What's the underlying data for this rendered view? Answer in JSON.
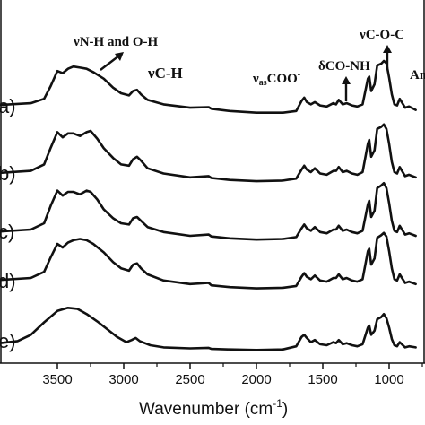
{
  "chart_data": {
    "type": "line",
    "title": "",
    "xlabel_main": "Wavenumber (cm",
    "xlabel_sup": "-1",
    "xlabel_close": ")",
    "ylabel": "",
    "xlim": [
      4000,
      800
    ],
    "x_ticks": [
      3500,
      3000,
      2500,
      2000,
      1500,
      1000
    ],
    "x_tick_labels": [
      "3500",
      "3000",
      "2500",
      "2000",
      "1500",
      "1000"
    ],
    "grid": false,
    "series": [
      {
        "name": "a)",
        "points": [
          [
            4000,
            0.2
          ],
          [
            3700,
            0.24
          ],
          [
            3600,
            0.32
          ],
          [
            3550,
            0.55
          ],
          [
            3500,
            0.82
          ],
          [
            3460,
            0.78
          ],
          [
            3420,
            0.86
          ],
          [
            3380,
            0.9
          ],
          [
            3330,
            0.88
          ],
          [
            3280,
            0.86
          ],
          [
            3230,
            0.8
          ],
          [
            3150,
            0.68
          ],
          [
            3080,
            0.52
          ],
          [
            3020,
            0.42
          ],
          [
            2960,
            0.38
          ],
          [
            2930,
            0.46
          ],
          [
            2900,
            0.48
          ],
          [
            2870,
            0.4
          ],
          [
            2820,
            0.3
          ],
          [
            2700,
            0.22
          ],
          [
            2500,
            0.16
          ],
          [
            2360,
            0.17
          ],
          [
            2340,
            0.14
          ],
          [
            2200,
            0.1
          ],
          [
            2000,
            0.07
          ],
          [
            1800,
            0.07
          ],
          [
            1700,
            0.1
          ],
          [
            1660,
            0.28
          ],
          [
            1640,
            0.34
          ],
          [
            1620,
            0.26
          ],
          [
            1590,
            0.22
          ],
          [
            1560,
            0.26
          ],
          [
            1520,
            0.2
          ],
          [
            1470,
            0.18
          ],
          [
            1420,
            0.24
          ],
          [
            1400,
            0.22
          ],
          [
            1380,
            0.3
          ],
          [
            1350,
            0.22
          ],
          [
            1320,
            0.24
          ],
          [
            1280,
            0.2
          ],
          [
            1240,
            0.18
          ],
          [
            1200,
            0.22
          ],
          [
            1160,
            0.68
          ],
          [
            1150,
            0.72
          ],
          [
            1135,
            0.46
          ],
          [
            1110,
            0.58
          ],
          [
            1090,
            0.92
          ],
          [
            1060,
            0.95
          ],
          [
            1040,
            1.0
          ],
          [
            1020,
            0.96
          ],
          [
            1000,
            0.7
          ],
          [
            980,
            0.4
          ],
          [
            960,
            0.22
          ],
          [
            940,
            0.2
          ],
          [
            920,
            0.32
          ],
          [
            880,
            0.16
          ],
          [
            850,
            0.18
          ],
          [
            800,
            0.12
          ]
        ]
      },
      {
        "name": "b)",
        "points": [
          [
            4000,
            0.16
          ],
          [
            3700,
            0.2
          ],
          [
            3600,
            0.3
          ],
          [
            3550,
            0.56
          ],
          [
            3500,
            0.8
          ],
          [
            3460,
            0.72
          ],
          [
            3420,
            0.78
          ],
          [
            3380,
            0.78
          ],
          [
            3330,
            0.74
          ],
          [
            3280,
            0.8
          ],
          [
            3250,
            0.82
          ],
          [
            3200,
            0.7
          ],
          [
            3150,
            0.55
          ],
          [
            3080,
            0.4
          ],
          [
            3020,
            0.3
          ],
          [
            2960,
            0.28
          ],
          [
            2930,
            0.38
          ],
          [
            2900,
            0.42
          ],
          [
            2870,
            0.36
          ],
          [
            2820,
            0.24
          ],
          [
            2700,
            0.16
          ],
          [
            2500,
            0.1
          ],
          [
            2360,
            0.12
          ],
          [
            2340,
            0.09
          ],
          [
            2200,
            0.06
          ],
          [
            2000,
            0.04
          ],
          [
            1800,
            0.05
          ],
          [
            1700,
            0.08
          ],
          [
            1660,
            0.22
          ],
          [
            1640,
            0.28
          ],
          [
            1620,
            0.22
          ],
          [
            1590,
            0.18
          ],
          [
            1560,
            0.24
          ],
          [
            1520,
            0.16
          ],
          [
            1470,
            0.14
          ],
          [
            1420,
            0.2
          ],
          [
            1400,
            0.2
          ],
          [
            1380,
            0.26
          ],
          [
            1350,
            0.18
          ],
          [
            1320,
            0.2
          ],
          [
            1280,
            0.16
          ],
          [
            1240,
            0.14
          ],
          [
            1200,
            0.18
          ],
          [
            1160,
            0.62
          ],
          [
            1150,
            0.68
          ],
          [
            1135,
            0.42
          ],
          [
            1110,
            0.52
          ],
          [
            1090,
            0.85
          ],
          [
            1060,
            0.88
          ],
          [
            1040,
            0.92
          ],
          [
            1020,
            0.85
          ],
          [
            1000,
            0.62
          ],
          [
            980,
            0.34
          ],
          [
            960,
            0.18
          ],
          [
            940,
            0.16
          ],
          [
            920,
            0.26
          ],
          [
            880,
            0.12
          ],
          [
            850,
            0.14
          ],
          [
            800,
            0.1
          ]
        ]
      },
      {
        "name": "c)",
        "points": [
          [
            4000,
            0.16
          ],
          [
            3700,
            0.2
          ],
          [
            3600,
            0.3
          ],
          [
            3550,
            0.58
          ],
          [
            3500,
            0.82
          ],
          [
            3460,
            0.74
          ],
          [
            3420,
            0.8
          ],
          [
            3380,
            0.8
          ],
          [
            3330,
            0.76
          ],
          [
            3280,
            0.82
          ],
          [
            3250,
            0.8
          ],
          [
            3200,
            0.68
          ],
          [
            3150,
            0.52
          ],
          [
            3080,
            0.38
          ],
          [
            3020,
            0.3
          ],
          [
            2960,
            0.28
          ],
          [
            2930,
            0.38
          ],
          [
            2900,
            0.4
          ],
          [
            2870,
            0.34
          ],
          [
            2820,
            0.24
          ],
          [
            2700,
            0.16
          ],
          [
            2500,
            0.1
          ],
          [
            2360,
            0.12
          ],
          [
            2340,
            0.09
          ],
          [
            2200,
            0.06
          ],
          [
            2000,
            0.04
          ],
          [
            1800,
            0.05
          ],
          [
            1700,
            0.08
          ],
          [
            1660,
            0.22
          ],
          [
            1640,
            0.28
          ],
          [
            1620,
            0.22
          ],
          [
            1590,
            0.18
          ],
          [
            1560,
            0.24
          ],
          [
            1520,
            0.16
          ],
          [
            1470,
            0.14
          ],
          [
            1420,
            0.2
          ],
          [
            1400,
            0.2
          ],
          [
            1380,
            0.26
          ],
          [
            1350,
            0.18
          ],
          [
            1320,
            0.2
          ],
          [
            1280,
            0.16
          ],
          [
            1240,
            0.14
          ],
          [
            1200,
            0.18
          ],
          [
            1160,
            0.6
          ],
          [
            1150,
            0.66
          ],
          [
            1135,
            0.4
          ],
          [
            1110,
            0.5
          ],
          [
            1090,
            0.86
          ],
          [
            1060,
            0.9
          ],
          [
            1040,
            0.94
          ],
          [
            1020,
            0.86
          ],
          [
            1000,
            0.62
          ],
          [
            980,
            0.34
          ],
          [
            960,
            0.18
          ],
          [
            940,
            0.16
          ],
          [
            920,
            0.26
          ],
          [
            880,
            0.12
          ],
          [
            850,
            0.14
          ],
          [
            800,
            0.1
          ]
        ]
      },
      {
        "name": "d)",
        "points": [
          [
            4000,
            0.18
          ],
          [
            3700,
            0.22
          ],
          [
            3600,
            0.32
          ],
          [
            3550,
            0.56
          ],
          [
            3500,
            0.78
          ],
          [
            3460,
            0.72
          ],
          [
            3420,
            0.8
          ],
          [
            3380,
            0.84
          ],
          [
            3330,
            0.86
          ],
          [
            3280,
            0.84
          ],
          [
            3230,
            0.78
          ],
          [
            3150,
            0.64
          ],
          [
            3080,
            0.48
          ],
          [
            3020,
            0.38
          ],
          [
            2960,
            0.34
          ],
          [
            2930,
            0.44
          ],
          [
            2900,
            0.46
          ],
          [
            2870,
            0.38
          ],
          [
            2820,
            0.28
          ],
          [
            2700,
            0.18
          ],
          [
            2500,
            0.12
          ],
          [
            2360,
            0.14
          ],
          [
            2340,
            0.1
          ],
          [
            2200,
            0.07
          ],
          [
            2000,
            0.05
          ],
          [
            1800,
            0.06
          ],
          [
            1700,
            0.09
          ],
          [
            1660,
            0.24
          ],
          [
            1640,
            0.3
          ],
          [
            1620,
            0.24
          ],
          [
            1590,
            0.2
          ],
          [
            1560,
            0.26
          ],
          [
            1520,
            0.18
          ],
          [
            1470,
            0.16
          ],
          [
            1420,
            0.22
          ],
          [
            1400,
            0.22
          ],
          [
            1380,
            0.28
          ],
          [
            1350,
            0.2
          ],
          [
            1320,
            0.22
          ],
          [
            1280,
            0.18
          ],
          [
            1240,
            0.16
          ],
          [
            1200,
            0.2
          ],
          [
            1160,
            0.66
          ],
          [
            1150,
            0.7
          ],
          [
            1135,
            0.44
          ],
          [
            1110,
            0.54
          ],
          [
            1090,
            0.88
          ],
          [
            1060,
            0.92
          ],
          [
            1040,
            0.96
          ],
          [
            1020,
            0.9
          ],
          [
            1000,
            0.66
          ],
          [
            980,
            0.38
          ],
          [
            960,
            0.2
          ],
          [
            940,
            0.18
          ],
          [
            920,
            0.28
          ],
          [
            880,
            0.14
          ],
          [
            850,
            0.16
          ],
          [
            800,
            0.12
          ]
        ]
      },
      {
        "name": "e)",
        "points": [
          [
            4000,
            0.14
          ],
          [
            3800,
            0.2
          ],
          [
            3700,
            0.32
          ],
          [
            3600,
            0.56
          ],
          [
            3500,
            0.78
          ],
          [
            3420,
            0.84
          ],
          [
            3350,
            0.82
          ],
          [
            3280,
            0.72
          ],
          [
            3200,
            0.58
          ],
          [
            3120,
            0.42
          ],
          [
            3050,
            0.28
          ],
          [
            2980,
            0.18
          ],
          [
            2940,
            0.22
          ],
          [
            2910,
            0.26
          ],
          [
            2880,
            0.2
          ],
          [
            2800,
            0.12
          ],
          [
            2700,
            0.08
          ],
          [
            2500,
            0.06
          ],
          [
            2360,
            0.07
          ],
          [
            2340,
            0.05
          ],
          [
            2200,
            0.04
          ],
          [
            2000,
            0.03
          ],
          [
            1800,
            0.04
          ],
          [
            1700,
            0.1
          ],
          [
            1660,
            0.28
          ],
          [
            1640,
            0.32
          ],
          [
            1620,
            0.26
          ],
          [
            1590,
            0.18
          ],
          [
            1560,
            0.22
          ],
          [
            1520,
            0.14
          ],
          [
            1470,
            0.12
          ],
          [
            1420,
            0.18
          ],
          [
            1400,
            0.16
          ],
          [
            1380,
            0.22
          ],
          [
            1350,
            0.14
          ],
          [
            1320,
            0.16
          ],
          [
            1280,
            0.12
          ],
          [
            1240,
            0.1
          ],
          [
            1200,
            0.14
          ],
          [
            1160,
            0.46
          ],
          [
            1150,
            0.5
          ],
          [
            1135,
            0.32
          ],
          [
            1110,
            0.4
          ],
          [
            1090,
            0.62
          ],
          [
            1060,
            0.66
          ],
          [
            1040,
            0.72
          ],
          [
            1020,
            0.64
          ],
          [
            1000,
            0.46
          ],
          [
            980,
            0.24
          ],
          [
            960,
            0.12
          ],
          [
            940,
            0.1
          ],
          [
            920,
            0.18
          ],
          [
            880,
            0.08
          ],
          [
            850,
            0.1
          ],
          [
            800,
            0.08
          ]
        ]
      }
    ],
    "annotations": [
      {
        "id": "nh-oh",
        "text": "νN-H and O-H",
        "x": 3250,
        "arrow": "up-right"
      },
      {
        "id": "ch",
        "text": "νC-H",
        "x": 2880,
        "arrow": "none"
      },
      {
        "id": "coo",
        "text_main": "ν",
        "text_sub": "as",
        "text_rest": "COO",
        "text_sup": "-",
        "x": 1700,
        "arrow": "none"
      },
      {
        "id": "co-nh",
        "text": "δCO-NH",
        "x": 1400,
        "arrow": "up"
      },
      {
        "id": "coc",
        "text": "νC-O-C",
        "x": 1080,
        "arrow": "up"
      },
      {
        "id": "am",
        "text": "Am",
        "x": 900,
        "arrow": "none"
      }
    ]
  }
}
